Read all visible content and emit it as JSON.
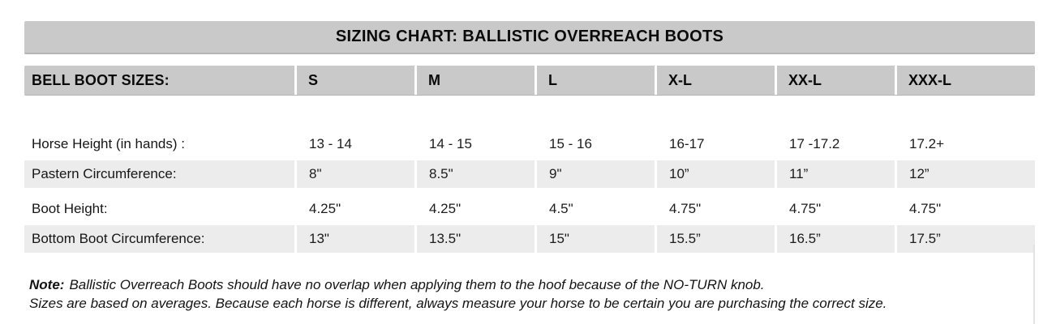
{
  "title": "SIZING CHART: BALLISTIC OVERREACH BOOTS",
  "table": {
    "header_label": "BELL BOOT SIZES:",
    "sizes": [
      "S",
      "M",
      "L",
      "X-L",
      "XX-L",
      "XXX-L"
    ],
    "rows": [
      {
        "label": "Horse Height (in hands) :",
        "values": [
          "13 - 14",
          "14 - 15",
          "15 - 16",
          "16-17",
          "17 -17.2",
          "17.2+"
        ]
      },
      {
        "label": "Pastern Circumference:",
        "values": [
          "8\"",
          "8.5\"",
          "9\"",
          "10”",
          "11”",
          "12”"
        ]
      },
      {
        "label": "Boot Height:",
        "values": [
          "4.25\"",
          "4.25\"",
          "4.5\"",
          "4.75\"",
          "4.75\"",
          "4.75\""
        ]
      },
      {
        "label": "Bottom Boot Circumference:",
        "values": [
          "13\"",
          "13.5\"",
          "15\"",
          "15.5”",
          "16.5”",
          "17.5”"
        ]
      }
    ]
  },
  "note": {
    "label": "Note:",
    "line1": "Ballistic Overreach Boots should have no overlap when applying them to the hoof because of the NO-TURN knob.",
    "line2": "Sizes are based on averages. Because each horse is different, always measure your horse to be certain you are purchasing the correct size."
  },
  "colors": {
    "bar_gray": "#c9c9c9",
    "stripe_gray": "#ececec",
    "text": "#000000"
  }
}
